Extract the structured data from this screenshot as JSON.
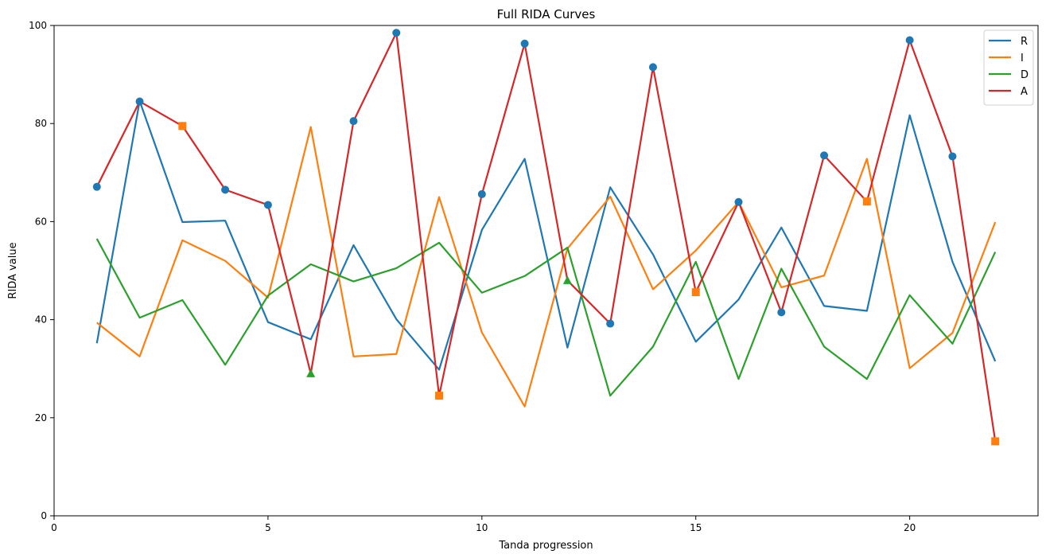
{
  "chart_data": {
    "type": "line",
    "title": "Full RIDA Curves",
    "xlabel": "Tanda progression",
    "ylabel": "RIDA value",
    "xlim": [
      0,
      23
    ],
    "ylim": [
      0,
      100
    ],
    "xticks": [
      0,
      5,
      10,
      15,
      20
    ],
    "yticks": [
      0,
      20,
      40,
      60,
      80,
      100
    ],
    "grid": false,
    "legend": "top-right",
    "x": [
      1,
      2,
      3,
      4,
      5,
      6,
      7,
      8,
      9,
      10,
      11,
      12,
      13,
      14,
      15,
      16,
      17,
      18,
      19,
      20,
      21,
      22
    ],
    "series": [
      {
        "name": "R",
        "color": "#1f77b4",
        "values": [
          35.2,
          84.6,
          59.9,
          60.2,
          39.5,
          36.0,
          55.2,
          40.1,
          29.8,
          58.3,
          72.8,
          34.3,
          67.0,
          53.3,
          35.5,
          44.1,
          58.8,
          42.8,
          41.8,
          81.7,
          51.8,
          31.5
        ]
      },
      {
        "name": "I",
        "color": "#ff7f0e",
        "values": [
          39.4,
          32.5,
          56.2,
          52.0,
          44.5,
          79.3,
          32.5,
          33.0,
          65.0,
          37.4,
          22.3,
          54.5,
          65.1,
          46.2,
          54.1,
          64.0,
          46.6,
          49.0,
          72.8,
          30.1,
          37.3,
          59.9
        ]
      },
      {
        "name": "D",
        "color": "#2ca02c",
        "values": [
          56.5,
          40.4,
          44.0,
          30.8,
          44.9,
          51.3,
          47.8,
          50.5,
          55.7,
          45.5,
          48.9,
          54.7,
          24.5,
          34.5,
          51.8,
          27.9,
          50.4,
          34.5,
          27.9,
          45.0,
          35.1,
          53.8
        ]
      },
      {
        "name": "A",
        "color": "#d62728",
        "values": [
          67.1,
          84.5,
          79.5,
          66.5,
          63.4,
          29.0,
          80.5,
          98.5,
          24.5,
          65.6,
          96.3,
          48.0,
          39.2,
          91.5,
          45.6,
          64.0,
          41.5,
          73.5,
          64.1,
          97.0,
          73.3,
          15.2
        ]
      }
    ],
    "markers": {
      "source_colors": {
        "R": "#1f77b4",
        "I": "#ff7f0e",
        "D": "#2ca02c"
      },
      "shapes": {
        "R": "circle",
        "I": "square",
        "D": "triangle"
      },
      "source": [
        "R",
        "R",
        "I",
        "R",
        "R",
        "D",
        "R",
        "R",
        "I",
        "R",
        "R",
        "D",
        "R",
        "R",
        "I",
        "R",
        "R",
        "R",
        "I",
        "R",
        "R",
        "I"
      ]
    }
  }
}
